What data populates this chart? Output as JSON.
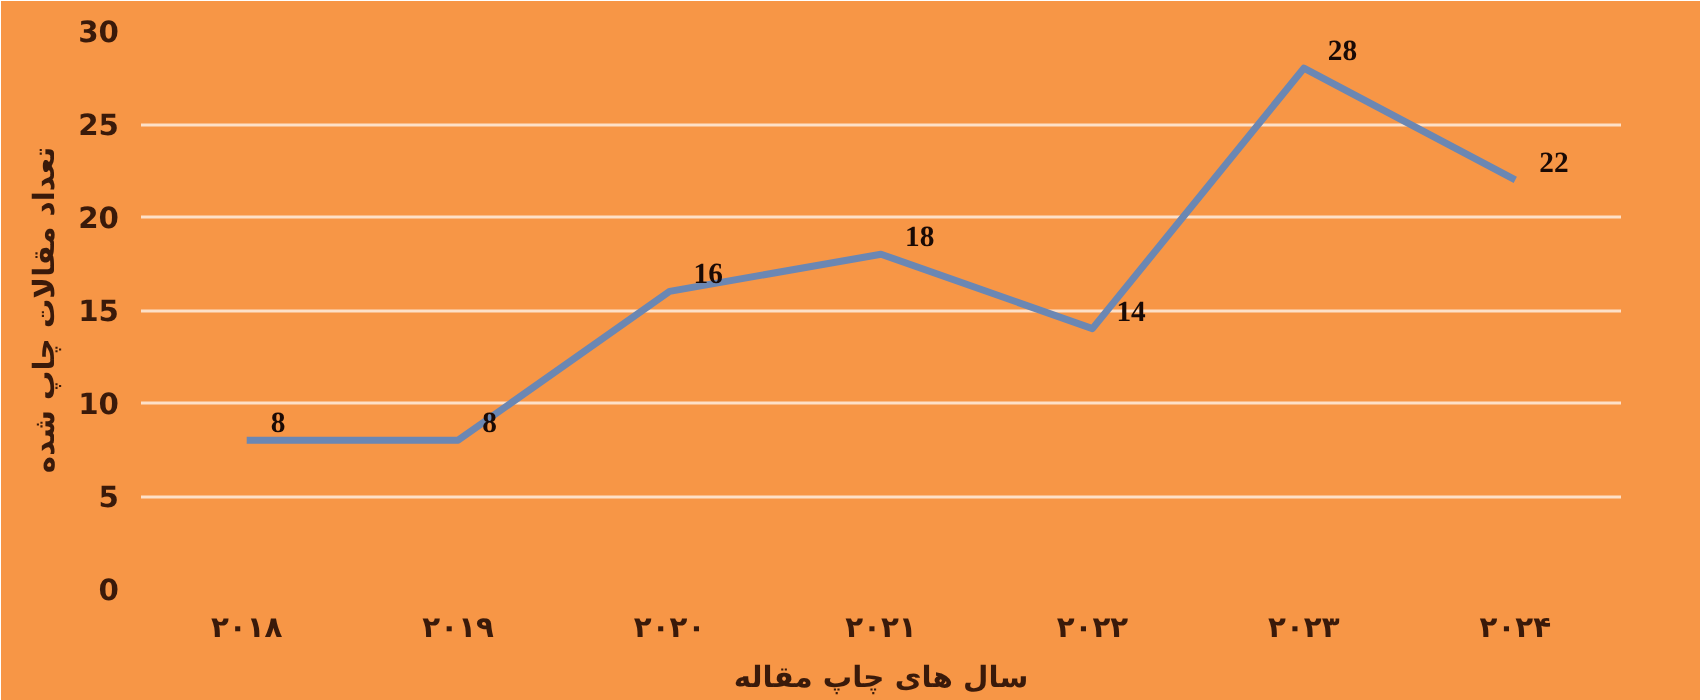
{
  "chart_data": {
    "type": "line",
    "xlabel": "سال های چاپ مقاله",
    "ylabel": "تعداد مقالات چاپ شده",
    "categories": [
      "۲۰۱۸",
      "۲۰۱۹",
      "۲۰۲۰",
      "۲۰۲۱",
      "۲۰۲۲",
      "۲۰۲۳",
      "۲۰۲۴"
    ],
    "series": [
      {
        "color": "#6b87b3",
        "values": [
          8,
          8,
          16,
          18,
          14,
          28,
          22
        ]
      }
    ],
    "ylim": [
      0,
      30
    ],
    "yticks": [
      0,
      5,
      10,
      15,
      20,
      25,
      30
    ],
    "grid": "y",
    "data_labels": true,
    "marker": "none",
    "line_style": "solid"
  }
}
